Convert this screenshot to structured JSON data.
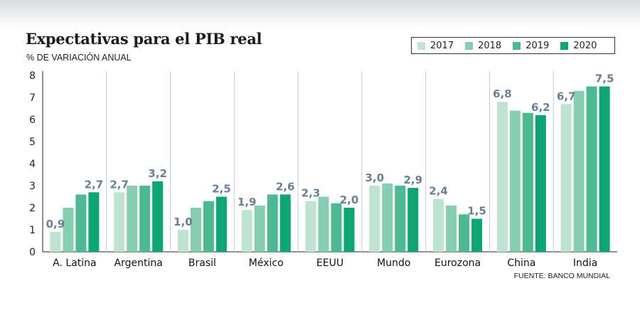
{
  "title": "Expectativas para el PIB real",
  "subtitle": "% DE VARIACIÓN ANUAL",
  "source": "FUENTE: BANCO MUNDIAL",
  "colors": {
    "2017": "#bfe3d3",
    "2018": "#86ceb1",
    "2019": "#4db993",
    "2020": "#0ba673",
    "value_label": "#6b7f94",
    "grid": "#c8c8c8"
  },
  "legend": [
    {
      "label": "2017",
      "color": "#bfe3d3"
    },
    {
      "label": "2018",
      "color": "#86ceb1"
    },
    {
      "label": "2019",
      "color": "#4db993"
    },
    {
      "label": "2020",
      "color": "#0ba673"
    }
  ],
  "chart_data": {
    "type": "bar",
    "title": "Expectativas para el PIB real",
    "subtitle": "% DE VARIACIÓN ANUAL",
    "xlabel": "",
    "ylabel": "",
    "ylim": [
      0,
      8
    ],
    "yticks": [
      0,
      1,
      2,
      3,
      4,
      5,
      6,
      7,
      8
    ],
    "categories": [
      "A. Latina",
      "Argentina",
      "Brasil",
      "México",
      "EEUU",
      "Mundo",
      "Eurozona",
      "China",
      "India"
    ],
    "series": [
      {
        "name": "2017",
        "values": [
          0.9,
          2.7,
          1.0,
          1.9,
          2.3,
          3.0,
          2.4,
          6.8,
          6.7
        ]
      },
      {
        "name": "2018",
        "values": [
          2.0,
          3.0,
          2.0,
          2.1,
          2.5,
          3.1,
          2.1,
          6.4,
          7.3
        ]
      },
      {
        "name": "2019",
        "values": [
          2.6,
          3.0,
          2.3,
          2.6,
          2.2,
          3.0,
          1.7,
          6.3,
          7.5
        ]
      },
      {
        "name": "2020",
        "values": [
          2.7,
          3.2,
          2.5,
          2.6,
          2.0,
          2.9,
          1.5,
          6.2,
          7.5
        ]
      }
    ],
    "data_labels": [
      {
        "category": "A. Latina",
        "first": "0,9",
        "last": "2,7"
      },
      {
        "category": "Argentina",
        "first": "2,7",
        "last": "3,2"
      },
      {
        "category": "Brasil",
        "first": "1,0",
        "last": "2,5"
      },
      {
        "category": "México",
        "first": "1,9",
        "last": "2,6"
      },
      {
        "category": "EEUU",
        "first": "2,3",
        "last": "2,0"
      },
      {
        "category": "Mundo",
        "first": "3,0",
        "last": "2,9"
      },
      {
        "category": "Eurozona",
        "first": "2,4",
        "last": "1,5"
      },
      {
        "category": "China",
        "first": "6,8",
        "last": "6,2"
      },
      {
        "category": "India",
        "first": "6,7",
        "last": "7,5"
      }
    ],
    "grid": "vertical separators between categories",
    "legend_position": "top-right"
  }
}
